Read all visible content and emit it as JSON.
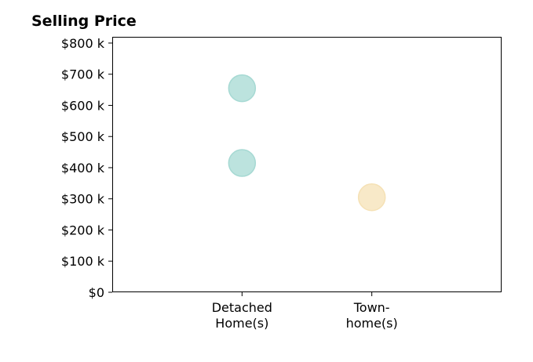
{
  "chart_data": {
    "type": "scatter",
    "title": "Selling Price",
    "xlabel": "",
    "ylabel": "",
    "categories": [
      {
        "lines": [
          "Detached",
          "Home(s)"
        ]
      },
      {
        "lines": [
          "Town-",
          "home(s)"
        ]
      }
    ],
    "xlim": [
      -1,
      2
    ],
    "ylim": [
      0,
      820000
    ],
    "yticks": [
      {
        "value": 0,
        "label": "$0"
      },
      {
        "value": 100000,
        "label": "$100 k"
      },
      {
        "value": 200000,
        "label": "$200 k"
      },
      {
        "value": 300000,
        "label": "$300 k"
      },
      {
        "value": 400000,
        "label": "$400 k"
      },
      {
        "value": 500000,
        "label": "$500 k"
      },
      {
        "value": 600000,
        "label": "$600 k"
      },
      {
        "value": 700000,
        "label": "$700 k"
      },
      {
        "value": 800000,
        "label": "$800 k"
      }
    ],
    "points": [
      {
        "category": 0,
        "value": 655000,
        "color": "#a6d9d3"
      },
      {
        "category": 0,
        "value": 415000,
        "color": "#a6d9d3"
      },
      {
        "category": 1,
        "value": 305000,
        "color": "#f5e1b5"
      }
    ],
    "grid": false,
    "legend": "none"
  }
}
